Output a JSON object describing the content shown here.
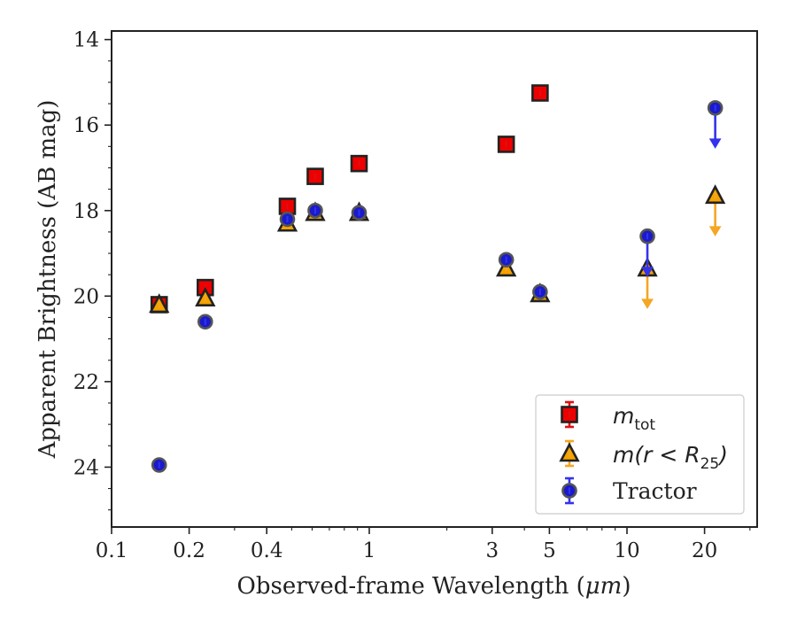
{
  "chart_data": {
    "type": "scatter",
    "xlabel_prefix": "Observed-frame Wavelength (",
    "xlabel_unit": "μm",
    "xlabel_suffix": ")",
    "ylabel": "Apparent Brightness (AB mag)",
    "xscale": "log",
    "xlim": [
      0.1,
      32
    ],
    "ylim": [
      25.4,
      13.8
    ],
    "y_inverted": true,
    "x_major_ticks": [
      0.1,
      0.2,
      0.4,
      1,
      3,
      5,
      10,
      20
    ],
    "x_tick_labels": [
      "0.1",
      "0.2",
      "0.4",
      "1",
      "3",
      "5",
      "10",
      "20"
    ],
    "y_ticks": [
      14,
      16,
      18,
      20,
      22,
      24
    ],
    "y_tick_labels": [
      "14",
      "16",
      "18",
      "20",
      "22",
      "24"
    ],
    "legend_position": "lower-right",
    "series": [
      {
        "name_main": "m",
        "name_sub": "tot",
        "marker": "square",
        "face_color": "#ee0000",
        "error_color": "#dd1111",
        "points": [
          {
            "x": 0.153,
            "y": 20.2
          },
          {
            "x": 0.231,
            "y": 19.8
          },
          {
            "x": 0.481,
            "y": 17.9
          },
          {
            "x": 0.617,
            "y": 17.2
          },
          {
            "x": 0.913,
            "y": 16.9
          },
          {
            "x": 3.4,
            "y": 16.45
          },
          {
            "x": 4.6,
            "y": 15.25
          }
        ],
        "upper_limits": []
      },
      {
        "name_main": "m(r < R",
        "name_sub": "25",
        "name_close": ")",
        "marker": "triangle",
        "face_color": "#f5a300",
        "error_color": "#f5a623",
        "points": [
          {
            "x": 0.153,
            "y": 20.2
          },
          {
            "x": 0.231,
            "y": 20.05
          },
          {
            "x": 0.481,
            "y": 18.3
          },
          {
            "x": 0.617,
            "y": 18.05
          },
          {
            "x": 0.913,
            "y": 18.05
          },
          {
            "x": 3.4,
            "y": 19.35
          },
          {
            "x": 4.6,
            "y": 19.95
          }
        ],
        "upper_limits": [
          {
            "x": 12.0,
            "y": 19.35
          },
          {
            "x": 22.0,
            "y": 17.65
          }
        ]
      },
      {
        "name_main": "Tractor",
        "marker": "circle",
        "face_color": "#1a1acc",
        "error_color": "#3333ee",
        "points": [
          {
            "x": 0.153,
            "y": 23.95
          },
          {
            "x": 0.231,
            "y": 20.6
          },
          {
            "x": 0.481,
            "y": 18.2
          },
          {
            "x": 0.617,
            "y": 18.0
          },
          {
            "x": 0.913,
            "y": 18.05
          },
          {
            "x": 3.4,
            "y": 19.15
          },
          {
            "x": 4.6,
            "y": 19.9
          }
        ],
        "upper_limits": [
          {
            "x": 12.0,
            "y": 18.6
          },
          {
            "x": 22.0,
            "y": 15.6
          }
        ]
      }
    ]
  }
}
